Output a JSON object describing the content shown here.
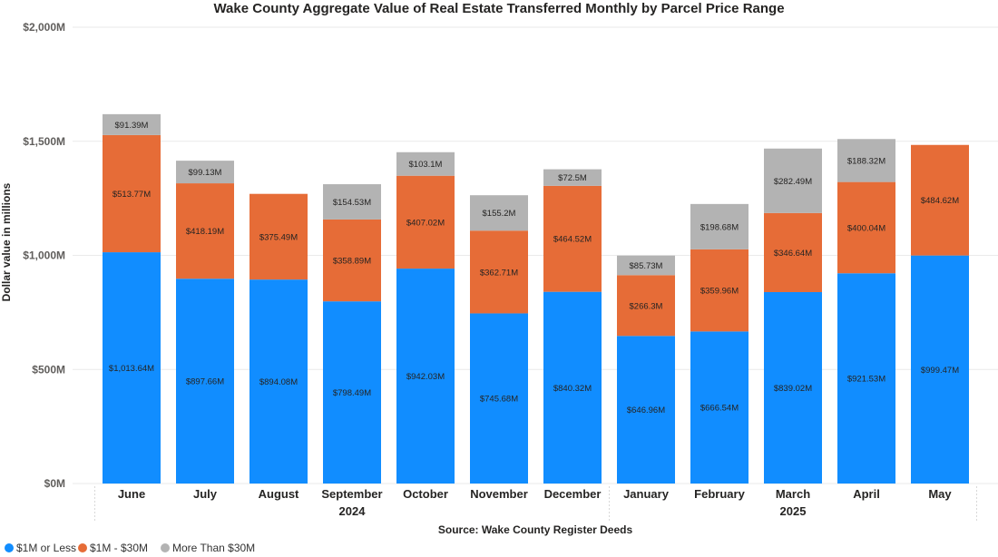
{
  "chart_data": {
    "type": "bar",
    "stacked": true,
    "title": "Wake County Aggregate Value of Real Estate Transferred Monthly by Parcel Price Range",
    "xlabel": "Source: Wake County Register Deeds",
    "ylabel": "Dollar value in millions",
    "ylim": [
      0,
      2000
    ],
    "yticks": [
      0,
      500,
      1000,
      1500,
      2000
    ],
    "ytick_labels": [
      "$0M",
      "$500M",
      "$1,000M",
      "$1,500M",
      "$2,000M"
    ],
    "gridlines": true,
    "legend_position": "bottom-left",
    "categories": [
      "June",
      "July",
      "August",
      "September",
      "October",
      "November",
      "December",
      "January",
      "February",
      "March",
      "April",
      "May"
    ],
    "year_groups": [
      {
        "label": "2024",
        "start": 0,
        "end": 6
      },
      {
        "label": "2025",
        "start": 7,
        "end": 11
      }
    ],
    "series": [
      {
        "name": "$1M or Less",
        "color": "#118DFF",
        "values": [
          1013.64,
          897.66,
          894.08,
          798.49,
          942.03,
          745.68,
          840.32,
          646.96,
          666.54,
          839.02,
          921.53,
          999.47
        ],
        "labels": [
          "$1,013.64M",
          "$897.66M",
          "$894.08M",
          "$798.49M",
          "$942.03M",
          "$745.68M",
          "$840.32M",
          "$646.96M",
          "$666.54M",
          "$839.02M",
          "$921.53M",
          "$999.47M"
        ]
      },
      {
        "name": "$1M - $30M",
        "color": "#E66C37",
        "values": [
          513.77,
          418.19,
          375.49,
          358.89,
          407.02,
          362.71,
          464.52,
          266.3,
          359.96,
          346.64,
          400.04,
          484.62
        ],
        "labels": [
          "$513.77M",
          "$418.19M",
          "$375.49M",
          "$358.89M",
          "$407.02M",
          "$362.71M",
          "$464.52M",
          "$266.3M",
          "$359.96M",
          "$346.64M",
          "$400.04M",
          "$484.62M"
        ]
      },
      {
        "name": "More Than $30M",
        "color": "#B3B3B3",
        "values": [
          91.39,
          99.13,
          0,
          154.53,
          103.1,
          155.2,
          72.5,
          85.73,
          198.68,
          282.49,
          188.32,
          0
        ],
        "labels": [
          "$91.39M",
          "$99.13M",
          "",
          "$154.53M",
          "$103.1M",
          "$155.2M",
          "$72.5M",
          "$85.73M",
          "$198.68M",
          "$282.49M",
          "$188.32M",
          ""
        ]
      }
    ]
  }
}
